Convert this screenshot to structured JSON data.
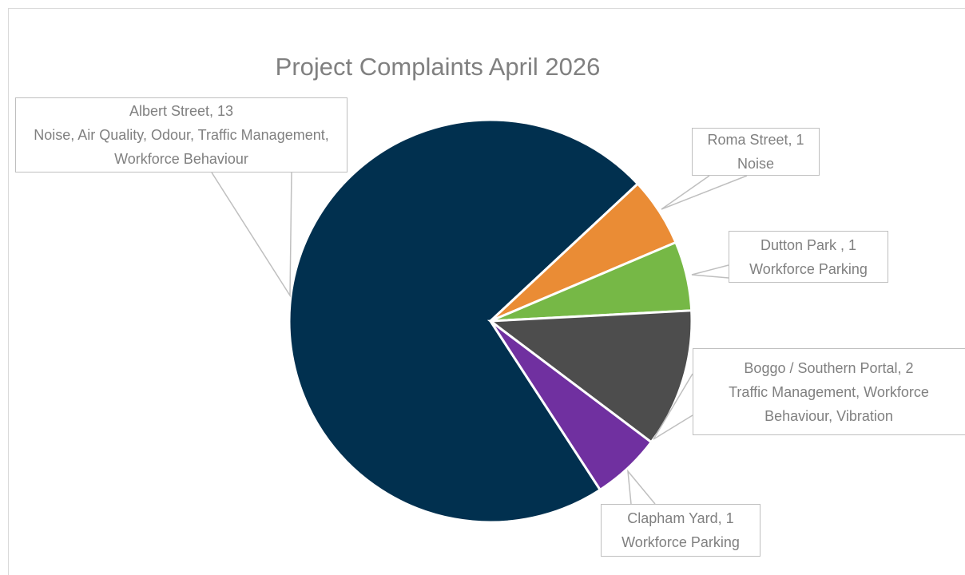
{
  "chart_data": {
    "type": "pie",
    "title": "Project Complaints April 2026",
    "values": [
      13,
      1,
      1,
      2,
      1
    ],
    "value_labels": [
      "Albert Street, 13",
      "Roma Street, 1",
      "Dutton Park , 1",
      "Boggo / Southern Portal, 2",
      "Clapham Yard, 1"
    ],
    "details": [
      "Noise, Air Quality, Odour, Traffic Management, Workforce Behaviour",
      "Noise",
      "Workforce Parking",
      "Traffic Management, Workforce Behaviour, Vibration",
      "Workforce Parking"
    ],
    "colors": [
      "#01304f",
      "#ea8c35",
      "#76b846",
      "#4d4d4d",
      "#7030a0"
    ]
  }
}
